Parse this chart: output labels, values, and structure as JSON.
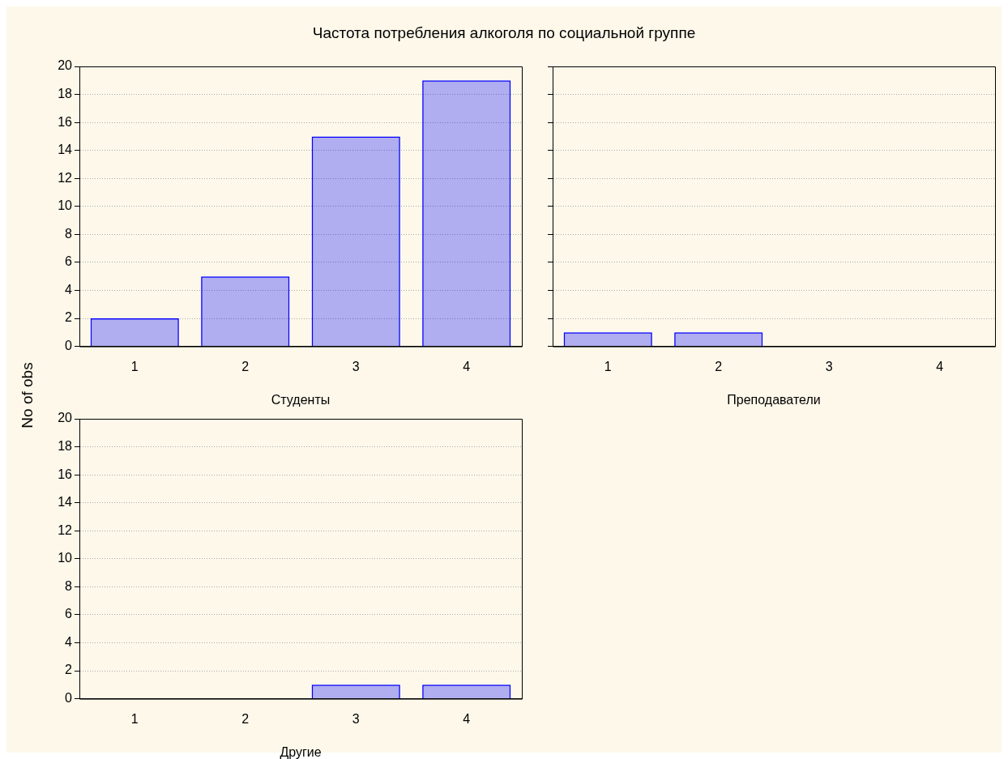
{
  "chart_data": [
    {
      "type": "bar",
      "title": "Частота потребления алкоголя по социальной группе",
      "ylabel": "No of obs",
      "xlabel": "Студенты",
      "categories": [
        "1",
        "2",
        "3",
        "4"
      ],
      "values": [
        2,
        5,
        15,
        19
      ],
      "color": "#0000ff",
      "ylim": [
        0,
        20
      ],
      "yticks": [
        0,
        2,
        4,
        6,
        8,
        10,
        12,
        14,
        16,
        18,
        20
      ],
      "grid": "y"
    },
    {
      "type": "bar",
      "xlabel": "Преподаватели",
      "categories": [
        "1",
        "2",
        "3",
        "4"
      ],
      "values": [
        1,
        1,
        0,
        0
      ],
      "color": "#0000ff",
      "ylim": [
        0,
        20
      ],
      "yticks": [
        0,
        2,
        4,
        6,
        8,
        10,
        12,
        14,
        16,
        18,
        20
      ],
      "grid": "y",
      "tick_labels": "x"
    },
    {
      "type": "bar",
      "xlabel": "Другие",
      "categories": [
        "1",
        "2",
        "3",
        "4"
      ],
      "values": [
        0,
        0,
        1,
        1
      ],
      "color": "#0000ff",
      "ylim": [
        0,
        20
      ],
      "yticks": [
        0,
        2,
        4,
        6,
        8,
        10,
        12,
        14,
        16,
        18,
        20
      ],
      "grid": "y"
    }
  ]
}
